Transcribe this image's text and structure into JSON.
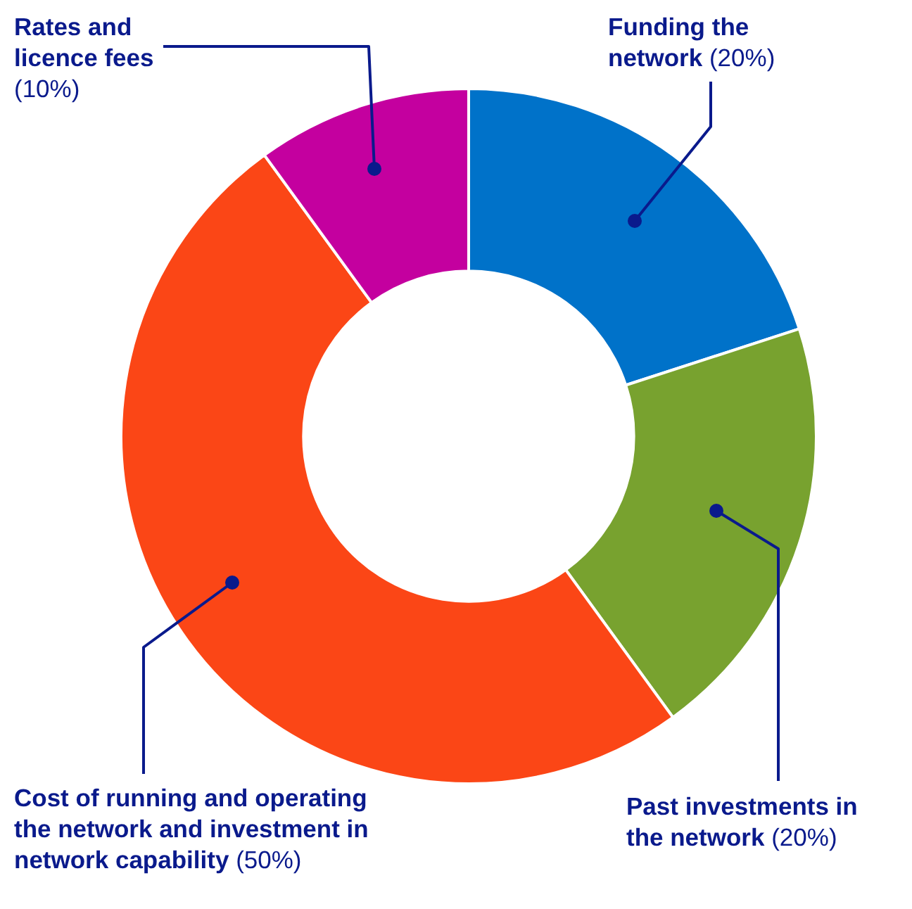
{
  "chart_data": {
    "type": "donut",
    "categories": [
      "Funding the network",
      "Past investments in the network",
      "Cost of running and operating the network and investment in network capability",
      "Rates and licence fees"
    ],
    "values": [
      20,
      20,
      50,
      10
    ],
    "colors": [
      "#0072c9",
      "#78a22f",
      "#fb4616",
      "#c4009f"
    ],
    "value_labels": [
      "(20%)",
      "(20%)",
      "(50%)",
      "(10%)"
    ],
    "legend": false
  }
}
